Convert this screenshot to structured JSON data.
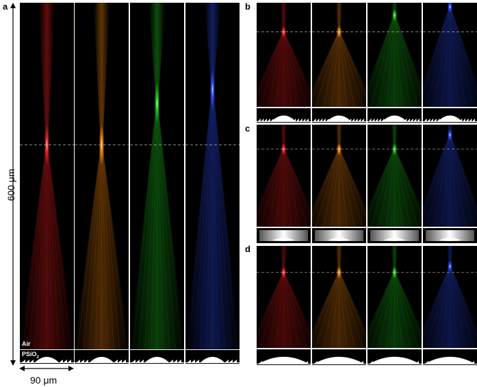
{
  "figure": {
    "panels": [
      {
        "letter": "a"
      },
      {
        "letter": "b"
      },
      {
        "letter": "c"
      },
      {
        "letter": "d"
      }
    ],
    "labels": {
      "air": "Air",
      "substrate": "PSiO",
      "substrate_sub": "2",
      "vertical_scale": "600 μm",
      "horizontal_scale": "90 μm"
    },
    "colors": {
      "red": "#ff2020",
      "orange": "#ff8a10",
      "green": "#20d020",
      "blue": "#3050ff",
      "dashed_line": "#9a9a9a"
    },
    "channels": [
      "red",
      "orange",
      "green",
      "blue"
    ]
  }
}
